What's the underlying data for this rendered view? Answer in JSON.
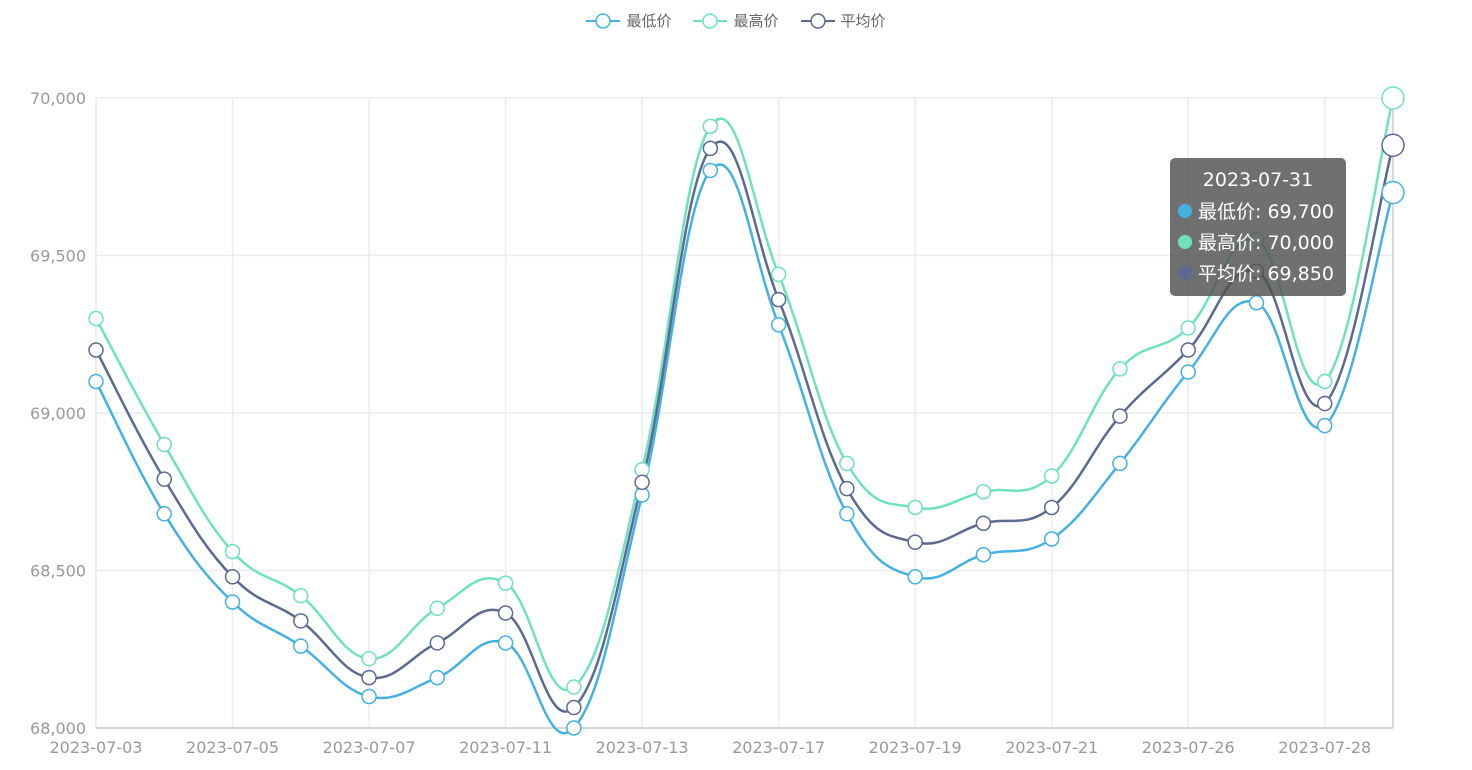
{
  "legend": [
    {
      "name": "最低价",
      "color": "#45b1e3"
    },
    {
      "name": "最高价",
      "color": "#6fe1bd"
    },
    {
      "name": "平均价",
      "color": "#5c6a91"
    }
  ],
  "tooltip": {
    "date": "2023-07-31",
    "rows": [
      {
        "label": "最低价: 69,700",
        "color": "#45b1e3"
      },
      {
        "label": "最高价: 70,000",
        "color": "#6fe1bd"
      },
      {
        "label": "平均价: 69,850",
        "color": "#5c6a91"
      }
    ]
  },
  "chart_data": {
    "type": "line",
    "smooth": true,
    "x_dates": [
      "2023-07-03",
      "2023-07-04",
      "2023-07-05",
      "2023-07-06",
      "2023-07-07",
      "2023-07-10",
      "2023-07-11",
      "2023-07-12",
      "2023-07-13",
      "2023-07-14",
      "2023-07-17",
      "2023-07-18",
      "2023-07-19",
      "2023-07-20",
      "2023-07-21",
      "2023-07-24",
      "2023-07-26",
      "2023-07-27",
      "2023-07-28",
      "2023-07-31"
    ],
    "x_tick_labels": [
      "2023-07-03",
      "2023-07-05",
      "2023-07-07",
      "2023-07-11",
      "2023-07-13",
      "2023-07-17",
      "2023-07-19",
      "2023-07-21",
      "2023-07-26",
      "2023-07-28"
    ],
    "y_ticks": [
      "68,000",
      "68,500",
      "69,000",
      "69,500",
      "70,000"
    ],
    "ylim": [
      68000,
      70000
    ],
    "grid": true,
    "legend_position": "top-center",
    "series": [
      {
        "name": "最低价",
        "color": "#45b1e3",
        "values": [
          69100,
          68680,
          68400,
          68260,
          68100,
          68160,
          68270,
          68000,
          68740,
          69770,
          69280,
          68680,
          68480,
          68550,
          68600,
          68840,
          69130,
          69350,
          68960,
          69700
        ]
      },
      {
        "name": "最高价",
        "color": "#6fe1bd",
        "values": [
          69300,
          68900,
          68560,
          68420,
          68220,
          68380,
          68460,
          68130,
          68820,
          69910,
          69440,
          68840,
          68700,
          68750,
          68800,
          69140,
          69270,
          69550,
          69100,
          70000
        ]
      },
      {
        "name": "平均价",
        "color": "#5c6a91",
        "values": [
          69200,
          68790,
          68480,
          68340,
          68160,
          68270,
          68365,
          68065,
          68780,
          69840,
          69360,
          68760,
          68590,
          68650,
          68700,
          68990,
          69200,
          69450,
          69030,
          69850
        ]
      }
    ]
  }
}
